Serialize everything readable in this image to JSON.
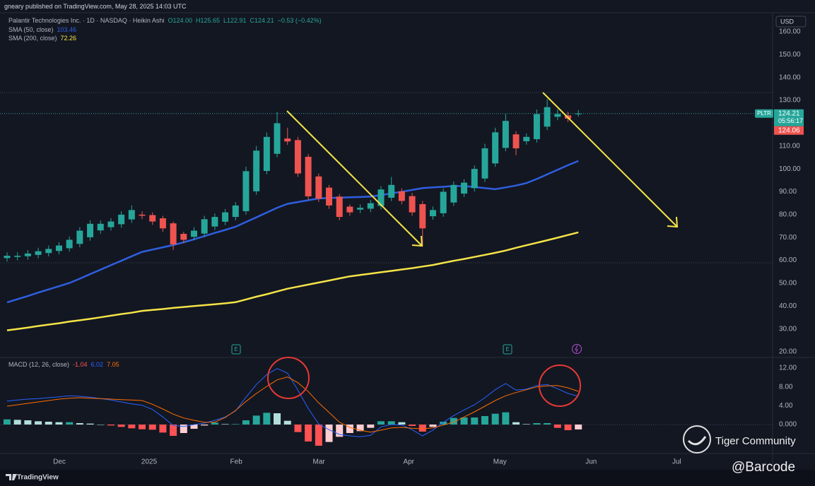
{
  "header": {
    "publisher": "gneary published on TradingView.com, May 28, 2025 14:03 UTC",
    "currency": "USD",
    "earnings_icon": "E",
    "footer": "TradingView",
    "watermark": "Tiger Community",
    "handle": "@Barcode"
  },
  "chart_data": [
    {
      "type": "candlestick",
      "title": "Palantir Technologies Inc. · 1D · NASDAQ · Heikin Ashi",
      "quote": [
        "O124.00",
        "H125.65",
        "L122.91",
        "C124.21",
        "−0.53 (−0.42%)"
      ],
      "up_color": "#26a69a",
      "down_color": "#ef5350",
      "open": [
        61,
        61.5,
        61.8,
        62.4,
        63.2,
        64.1,
        65.3,
        67.2,
        70.1,
        73.1,
        74.5,
        75.8,
        77.9,
        80,
        79.8,
        78.4,
        76.2,
        71.6,
        70.3,
        71.7,
        74.8,
        76.9,
        79,
        81.5,
        90.2,
        99.1,
        106.6,
        113.3,
        112.6,
        105.3,
        96.7,
        91.8,
        87.9,
        83.5,
        82.2,
        82.6,
        83.8,
        87.4,
        90.2,
        88.1,
        84.6,
        79.3,
        80.6,
        85.3,
        89.2,
        91.6,
        95.8,
        102.4,
        109.2,
        115.1,
        112.1,
        113,
        118.5,
        122.8,
        123.4,
        124
      ],
      "high": [
        63.5,
        63.5,
        64.5,
        65.5,
        66.5,
        68,
        70.5,
        74.5,
        77.5,
        77.5,
        78.5,
        81.5,
        84,
        81.5,
        81,
        79.5,
        77,
        72.5,
        74.5,
        79.5,
        80.5,
        82.5,
        85.5,
        101,
        110,
        116,
        124.8,
        118,
        114,
        106.5,
        98,
        93,
        89,
        84.5,
        84.5,
        86.5,
        92.5,
        96.5,
        91.5,
        89.5,
        86,
        83.5,
        91.5,
        94.5,
        95.5,
        101.5,
        111,
        118,
        124,
        116.5,
        115.5,
        126,
        130.5,
        126,
        125,
        125.65
      ],
      "low": [
        59.5,
        60,
        60.3,
        60.9,
        61.7,
        62.6,
        63.8,
        65.7,
        68.6,
        71.6,
        73,
        74.3,
        76.4,
        78,
        75.5,
        72.5,
        64.5,
        67.5,
        68.8,
        70.2,
        73.3,
        75.4,
        77.5,
        80,
        88.7,
        97.6,
        105.1,
        110.5,
        96.5,
        86.5,
        85.5,
        82.5,
        77.5,
        79.5,
        80.7,
        81.1,
        82.3,
        85.9,
        84.5,
        79.5,
        66,
        77.8,
        79.1,
        83.8,
        87.7,
        90.1,
        94.3,
        100.9,
        107.7,
        106,
        110.6,
        111.5,
        117,
        121.3,
        120.5,
        122.91
      ],
      "close": [
        62,
        62,
        63,
        64,
        65,
        66.5,
        69,
        73,
        76,
        76,
        77,
        80,
        82,
        79.5,
        77,
        74,
        67,
        69,
        73,
        78,
        79,
        81,
        84,
        99,
        108,
        114,
        120,
        112,
        98,
        88,
        87,
        84,
        79,
        81,
        83,
        85,
        91,
        93,
        86,
        81,
        74,
        82,
        90,
        93,
        94,
        100,
        109,
        116,
        121,
        109,
        114,
        124,
        127,
        124,
        122,
        124.21
      ],
      "series": [
        {
          "name": "SMA (50, close)",
          "color": "#2f5fe0",
          "values": [
            41.6,
            43.0,
            44.4,
            45.9,
            47.3,
            48.7,
            50.1,
            52.0,
            54.0,
            55.9,
            57.9,
            59.8,
            61.8,
            63.7,
            64.7,
            65.7,
            66.7,
            67.9,
            69.2,
            70.6,
            72.0,
            73.3,
            74.7,
            76.8,
            78.8,
            80.9,
            83.0,
            84.7,
            85.5,
            86.3,
            87.1,
            87.3,
            87.4,
            87.6,
            87.7,
            87.9,
            88.5,
            89.3,
            90.0,
            90.8,
            91.6,
            91.9,
            92.2,
            92.5,
            92.5,
            92.1,
            91.6,
            91.1,
            91.9,
            92.7,
            93.8,
            95.6,
            97.6,
            99.6,
            101.6,
            103.46
          ]
        },
        {
          "name": "SMA (200, close)",
          "color": "#f5e447",
          "values": [
            29.4,
            30.0,
            30.6,
            31.3,
            31.9,
            32.5,
            33.2,
            33.8,
            34.4,
            35.1,
            35.8,
            36.5,
            37.1,
            37.9,
            38.3,
            38.7,
            39.2,
            39.6,
            40.0,
            40.4,
            40.8,
            41.2,
            41.7,
            42.9,
            44.1,
            45.2,
            46.4,
            47.6,
            48.5,
            49.4,
            50.3,
            51.2,
            52.1,
            53.0,
            53.6,
            54.2,
            54.8,
            55.4,
            56.0,
            56.6,
            57.3,
            58.0,
            58.9,
            59.8,
            60.6,
            61.5,
            62.4,
            63.3,
            64.3,
            65.5,
            66.6,
            67.7,
            68.8,
            69.9,
            71.1,
            72.26
          ]
        }
      ],
      "symbol": "PLTR",
      "countdown": "05:56:17",
      "bid_label": "124.06",
      "xlim": [
        -0.68,
        73.7
      ],
      "xticks": [
        {
          "value": 5.04,
          "label": "Dec"
        },
        {
          "value": 13.68,
          "label": "2025"
        },
        {
          "value": 22.06,
          "label": "Feb"
        },
        {
          "value": 30.02,
          "label": "Mar"
        },
        {
          "value": 38.67,
          "label": "Apr"
        },
        {
          "value": 47.45,
          "label": "May"
        },
        {
          "value": 56.23,
          "label": "Jun"
        },
        {
          "value": 64.47,
          "label": "Jul"
        }
      ],
      "ylim": [
        17.85,
        167.7
      ],
      "yticks": [
        {
          "value": 160,
          "label": "160.00"
        },
        {
          "value": 150,
          "label": "150.00"
        },
        {
          "value": 140,
          "label": "140.00"
        },
        {
          "value": 130,
          "label": "130.00"
        },
        {
          "value": 120,
          "label": "120.00"
        },
        {
          "value": 110,
          "label": "110.00"
        },
        {
          "value": 100,
          "label": "100.00"
        },
        {
          "value": 90,
          "label": "90.00"
        },
        {
          "value": 80,
          "label": "80.00"
        },
        {
          "value": 70,
          "label": "70.00"
        },
        {
          "value": 60,
          "label": "60.00"
        },
        {
          "value": 50,
          "label": "50.00"
        },
        {
          "value": 40,
          "label": "40.00"
        },
        {
          "value": 30,
          "label": "30.00"
        },
        {
          "value": 20,
          "label": "20.00"
        }
      ],
      "grid": false
    },
    {
      "type": "macd",
      "title": "MACD (12, 26, close)",
      "histogram": {
        "colors": [
          "#26a69a",
          "#b2dfdb",
          "#ff5252",
          "#ffcdd2"
        ],
        "values": [
          1.1,
          1.0,
          0.9,
          0.7,
          0.6,
          0.5,
          0.5,
          0.3,
          0.2,
          0.0,
          -0.2,
          -0.5,
          -0.8,
          -1.0,
          -1.1,
          -1.7,
          -2.4,
          -1.8,
          -0.9,
          -0.2,
          0.4,
          0.1,
          0.1,
          0.9,
          1.9,
          2.5,
          2.4,
          0.8,
          -1.6,
          -3.6,
          -4.5,
          -3.7,
          -2.6,
          -1.8,
          -1.4,
          -0.7,
          0.7,
          0.7,
          0.5,
          -0.3,
          -1.5,
          -0.5,
          0.6,
          1.4,
          1.5,
          1.5,
          1.8,
          2.3,
          2.6,
          0.5,
          0.1,
          0.3,
          0.3,
          -0.7,
          -1.2,
          -1.04
        ]
      },
      "macd": {
        "color": "#2962ff",
        "values": [
          5.0,
          5.2,
          5.4,
          5.5,
          5.7,
          5.9,
          6.1,
          6.0,
          5.8,
          5.5,
          5.2,
          4.8,
          4.4,
          4.1,
          3.2,
          1.6,
          -0.2,
          -0.4,
          0.0,
          0.3,
          0.9,
          1.6,
          2.9,
          5.8,
          8.5,
          10.6,
          11.9,
          10.9,
          7.3,
          3.4,
          0.1,
          -1.1,
          -2.1,
          -2.4,
          -2.6,
          -2.3,
          -0.5,
          0.0,
          -0.1,
          -1.1,
          -2.4,
          -1.2,
          0.5,
          1.9,
          3.1,
          4.2,
          5.7,
          7.4,
          8.7,
          7.3,
          7.5,
          8.3,
          8.5,
          7.6,
          6.6,
          6.02
        ]
      },
      "signal": {
        "color": "#ff6d00",
        "values": [
          3.9,
          4.2,
          4.5,
          4.8,
          5.1,
          5.4,
          5.6,
          5.7,
          5.6,
          5.5,
          5.4,
          5.3,
          5.2,
          5.1,
          4.3,
          3.3,
          2.2,
          1.4,
          0.9,
          0.5,
          0.5,
          1.5,
          3.0,
          4.9,
          6.6,
          8.1,
          9.5,
          10.1,
          8.9,
          7.0,
          4.6,
          2.6,
          0.5,
          -0.6,
          -1.2,
          -1.6,
          -1.2,
          -0.7,
          -0.6,
          -0.8,
          -0.9,
          -0.7,
          -0.1,
          0.5,
          1.6,
          2.7,
          3.9,
          5.1,
          6.1,
          6.8,
          7.4,
          8.0,
          8.2,
          8.3,
          7.8,
          7.05
        ]
      },
      "ylim": [
        -5.85,
        13.95
      ],
      "yticks": [
        {
          "value": 12,
          "label": "12.00"
        },
        {
          "value": 8,
          "label": "8.00"
        },
        {
          "value": 4,
          "label": "4.00"
        },
        {
          "value": 0,
          "label": "0.000"
        }
      ],
      "grid": false
    }
  ]
}
